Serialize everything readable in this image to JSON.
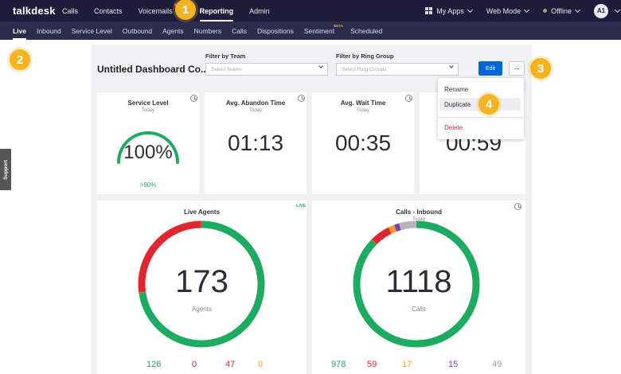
{
  "topnav": {
    "logo": "talkdesk",
    "items": [
      "Calls",
      "Contacts",
      "Voicemails",
      "Reporting",
      "Admin"
    ],
    "right": {
      "my_apps": "My Apps",
      "web_mode": "Web Mode",
      "status": "Offline",
      "avatar": "A1"
    }
  },
  "subnav": {
    "items": [
      "Live",
      "Inbound",
      "Service Level",
      "Outbound",
      "Agents",
      "Numbers",
      "Calls",
      "Dispositions",
      "Sentiment",
      "Scheduled"
    ],
    "beta": "BETA"
  },
  "dashboard": {
    "title": "Untitled Dashboard Co...",
    "filter_team_label": "Filter by Team",
    "filter_team_placeholder": "Select Teams",
    "filter_ring_label": "Filter by Ring Group",
    "filter_ring_placeholder": "Select Ring Groups",
    "edit_label": "Edit",
    "more_label": "···"
  },
  "menu": {
    "rename": "Rename",
    "duplicate": "Duplicate",
    "delete": "Delete"
  },
  "cards": {
    "service_level": {
      "title": "Service Level",
      "sub": "Today",
      "value": "100%",
      "target": ">90%",
      "level": 1.0
    },
    "abandon": {
      "title": "Avg. Abandon Time",
      "sub": "Today",
      "value": "01:13"
    },
    "wait": {
      "title": "Avg. Wait Time",
      "sub": "Today",
      "value": "00:35"
    },
    "fourth": {
      "value": "00:59"
    },
    "live_agents": {
      "title": "Live Agents",
      "tag": "LIVE",
      "value": "173",
      "unit": "Agents",
      "stats": [
        "126",
        "0",
        "47",
        "0"
      ]
    },
    "calls_inbound": {
      "title": "Calls - Inbound",
      "sub": "Today",
      "value": "1118",
      "unit": "Calls",
      "stats": [
        "978",
        "59",
        "17",
        "15",
        "49"
      ]
    }
  },
  "support": "Support",
  "callouts": [
    "1",
    "2",
    "3",
    "4"
  ],
  "colors": {
    "green": "#1daa61",
    "red": "#e0262f",
    "gray": "#b5b5bd",
    "orange": "#f39c2b",
    "purple": "#7b3fb8",
    "blue": "#0067d6",
    "callout": "#f4b321"
  }
}
